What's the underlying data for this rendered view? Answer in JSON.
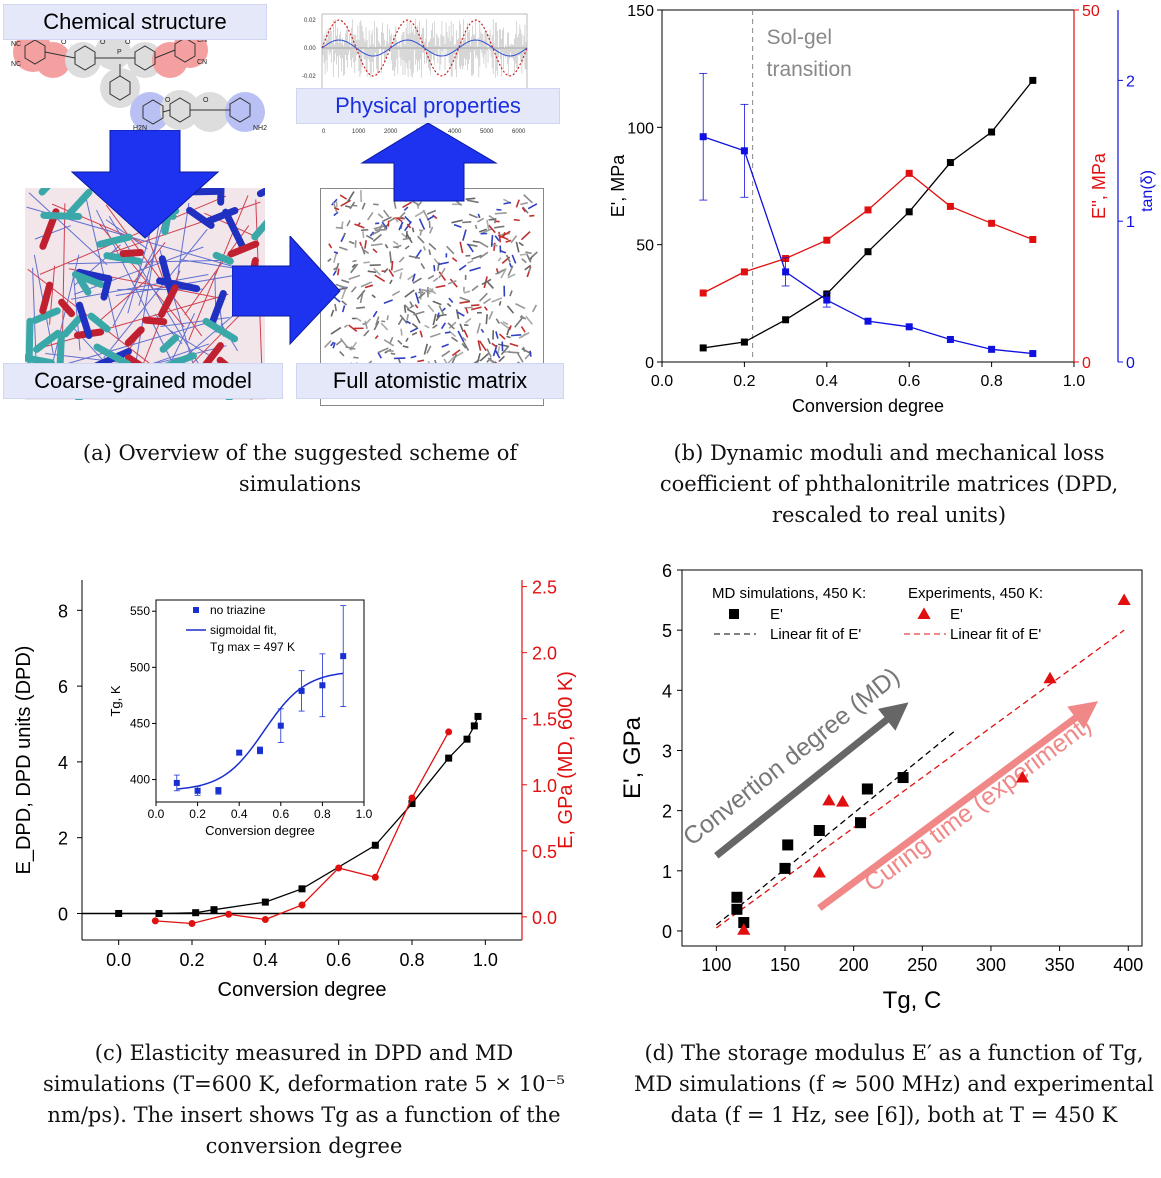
{
  "panel_a": {
    "chem_label": "Chemical structure",
    "phys_label": "Physical properties",
    "cg_label": "Coarse-grained model",
    "fa_label": "Full atomistic matrix",
    "chem_atoms": [
      "NC",
      "CN",
      "NC",
      "CN",
      "O",
      "O",
      "O",
      "P",
      "O",
      "O",
      "O",
      "H2N",
      "NH2"
    ],
    "thumb_yticks": [
      "0.02",
      "0.00",
      "-0.02"
    ],
    "thumb_xticks": [
      "0",
      "1000",
      "2000",
      "3000",
      "4000",
      "5000",
      "6000"
    ],
    "caption": "(a) Overview of the suggested scheme of simulations"
  },
  "caption_b": "(b) Dynamic moduli and mechanical loss coefficient of phthalonitrile matrices (DPD, rescaled to real units)",
  "caption_c": "(c) Elasticity measured in DPD and MD simulations (T=600 K, deformation rate 5 × 10⁻⁵ nm/ps). The insert shows Tg as a function of the conversion degree",
  "caption_d": "(d) The storage modulus E′ as a function of Tg, MD simulations (f ≈ 500 MHz) and experimental data (f = 1 Hz, see [6]), both at T = 450 K",
  "chart_data": [
    {
      "type": "line",
      "panel": "b",
      "xlabel": "Conversion degree",
      "xlim": [
        0.0,
        1.0
      ],
      "xticks": [
        "0.0",
        "0.2",
        "0.4",
        "0.6",
        "0.8",
        "1.0"
      ],
      "y_left": {
        "label": "E', MPa",
        "lim": [
          0,
          150
        ],
        "ticks": [
          "0",
          "50",
          "100",
          "150"
        ]
      },
      "y_right1": {
        "label": "E'', MPa",
        "lim": [
          0,
          50
        ],
        "ticks": [
          "0",
          "50"
        ],
        "color": "#e01010"
      },
      "y_right2": {
        "label": "tan(δ)",
        "lim": [
          0,
          2.5
        ],
        "ticks": [
          "0",
          "1",
          "2"
        ],
        "color": "#1010e0"
      },
      "annotation": "Sol-gel transition",
      "annotation_x": 0.22,
      "series": [
        {
          "axis": "left",
          "color": "#000000",
          "x": [
            0.1,
            0.2,
            0.3,
            0.4,
            0.5,
            0.6,
            0.7,
            0.8,
            0.9
          ],
          "values": [
            6,
            8.5,
            18,
            29,
            47,
            64,
            85,
            98,
            120
          ]
        },
        {
          "axis": "right1",
          "color": "#e01010",
          "x": [
            0.1,
            0.2,
            0.3,
            0.4,
            0.5,
            0.6,
            0.7,
            0.8,
            0.9
          ],
          "values": [
            9.8,
            12.8,
            14.7,
            17.3,
            21.6,
            26.8,
            22.1,
            19.7,
            17.4
          ]
        },
        {
          "axis": "right2",
          "color": "#1010e0",
          "x": [
            0.1,
            0.2,
            0.3,
            0.4,
            0.5,
            0.6,
            0.7,
            0.8,
            0.9
          ],
          "values": [
            1.6,
            1.5,
            0.64,
            0.44,
            0.29,
            0.25,
            0.16,
            0.09,
            0.06
          ],
          "err": [
            0.45,
            0.33,
            0.1,
            0.05,
            0,
            0,
            0,
            0,
            0
          ]
        }
      ]
    },
    {
      "type": "line",
      "panel": "c",
      "xlabel": "Conversion degree",
      "xlim": [
        -0.1,
        1.1
      ],
      "xticks": [
        "0.0",
        "0.2",
        "0.4",
        "0.6",
        "0.8",
        "1.0"
      ],
      "y_left": {
        "label": "E_DPD, DPD units (DPD)",
        "lim": [
          -0.7,
          8.8
        ],
        "ticks": [
          "0",
          "2",
          "4",
          "6",
          "8"
        ]
      },
      "y_right": {
        "label": "E, GPa (MD, 600 K)",
        "lim": [
          -0.175,
          2.55
        ],
        "ticks": [
          "0.0",
          "0.5",
          "1.0",
          "1.5",
          "2.0",
          "2.5"
        ],
        "color": "#e01010"
      },
      "series": [
        {
          "axis": "left",
          "color": "#000000",
          "x": [
            0,
            0.11,
            0.21,
            0.26,
            0.4,
            0.5,
            0.7,
            0.8,
            0.9,
            0.95,
            0.97,
            0.98
          ],
          "values": [
            0,
            0,
            0.02,
            0.1,
            0.3,
            0.65,
            1.8,
            2.9,
            4.1,
            4.6,
            4.95,
            5.2
          ]
        },
        {
          "axis": "right",
          "color": "#e01010",
          "x": [
            0.1,
            0.2,
            0.3,
            0.4,
            0.5,
            0.6,
            0.7,
            0.8,
            0.9
          ],
          "values": [
            -0.03,
            -0.05,
            0.02,
            -0.02,
            0.09,
            0.37,
            0.3,
            0.9,
            1.4
          ]
        }
      ],
      "inset": {
        "xlabel": "Conversion degree",
        "ylabel": "Tg, K",
        "xlim": [
          0.0,
          1.0
        ],
        "ylim": [
          380,
          560
        ],
        "xticks": [
          "0.0",
          "0.2",
          "0.4",
          "0.6",
          "0.8",
          "1.0"
        ],
        "yticks": [
          "400",
          "450",
          "500",
          "550"
        ],
        "legend": [
          "no triazine",
          "sigmoidal fit,",
          "Tg max = 497 K"
        ],
        "points": {
          "x": [
            0.1,
            0.2,
            0.3,
            0.4,
            0.5,
            0.6,
            0.7,
            0.8,
            0.9
          ],
          "values": [
            397,
            390,
            390,
            424,
            426,
            448,
            479,
            484,
            510
          ],
          "err": [
            7,
            4,
            3,
            2,
            3,
            15,
            18,
            28,
            45
          ]
        },
        "fit": {
          "x": [
            0.1,
            0.2,
            0.3,
            0.4,
            0.5,
            0.6,
            0.7,
            0.8,
            0.9
          ],
          "values": [
            392,
            396,
            405,
            421,
            441,
            461,
            475,
            484,
            490
          ]
        }
      }
    },
    {
      "type": "scatter",
      "panel": "d",
      "xlabel": "Tg, C",
      "ylabel": "E', GPa",
      "xlim": [
        75,
        410
      ],
      "ylim": [
        -0.25,
        6
      ],
      "xticks": [
        "100",
        "150",
        "200",
        "250",
        "300",
        "350",
        "400"
      ],
      "yticks": [
        "0",
        "1",
        "2",
        "3",
        "4",
        "5",
        "6"
      ],
      "legend_md_title": "MD simulations, 450 K:",
      "legend_exp_title": "Experiments, 450 K:",
      "legend_entries": [
        "E'",
        "Linear fit of E'",
        "E'",
        "Linear fit of E'"
      ],
      "arrow_md": "Convertion degree (MD)",
      "arrow_exp": "Curing time (experiment)",
      "series": [
        {
          "name": "E'",
          "color": "#000000",
          "marker": "square",
          "x": [
            115,
            115,
            120,
            150,
            152,
            175,
            205,
            210,
            236
          ],
          "values": [
            0.36,
            0.56,
            0.14,
            1.04,
            1.43,
            1.67,
            1.8,
            2.36,
            2.55
          ]
        },
        {
          "name": "E'",
          "color": "#e01010",
          "marker": "triangle",
          "x": [
            120,
            175,
            182,
            192,
            323,
            343,
            397
          ],
          "values": [
            0.02,
            0.97,
            2.17,
            2.15,
            2.55,
            4.2,
            5.5
          ]
        }
      ],
      "fits": [
        {
          "color": "#000000",
          "x": [
            100,
            275
          ],
          "values": [
            0.1,
            3.35
          ]
        },
        {
          "color": "#e01010",
          "x": [
            100,
            397
          ],
          "values": [
            0.05,
            5.0
          ]
        }
      ]
    }
  ]
}
